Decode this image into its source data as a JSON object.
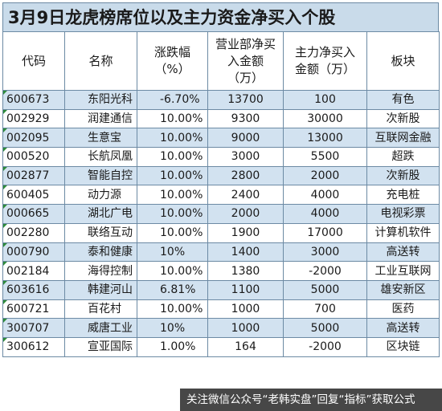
{
  "title": "3月9日龙虎榜席位以及主力资金净买入个股",
  "headers": [
    "代码",
    "名称",
    "涨跌幅（%）",
    "营业部净买入金额（万）",
    "主力净买入金额（万）",
    "板块"
  ],
  "rows": [
    [
      "600673",
      "东阳光科",
      "-6.70%",
      "13700",
      "100",
      "有色"
    ],
    [
      "002929",
      "润建通信",
      "10.00%",
      "9300",
      "30000",
      "次新股"
    ],
    [
      "002095",
      "生意宝",
      "10.00%",
      "9000",
      "13000",
      "互联网金融"
    ],
    [
      "000520",
      "长航凤凰",
      "10.00%",
      "3000",
      "5500",
      "超跌"
    ],
    [
      "002877",
      "智能自控",
      "10.00%",
      "2800",
      "2000",
      "次新股"
    ],
    [
      "600405",
      "动力源",
      "10.00%",
      "2400",
      "4000",
      "充电桩"
    ],
    [
      "000665",
      "湖北广电",
      "10.00%",
      "2000",
      "4000",
      "电视彩票"
    ],
    [
      "002280",
      "联络互动",
      "10.00%",
      "1900",
      "17000",
      "计算机软件"
    ],
    [
      "000790",
      "泰和健康",
      "10%",
      "1400",
      "3000",
      "高送转"
    ],
    [
      "002184",
      "海得控制",
      "10.00%",
      "1380",
      "-2000",
      "工业互联网"
    ],
    [
      "603616",
      "韩建河山",
      "6.81%",
      "1100",
      "5000",
      "雄安新区"
    ],
    [
      "600721",
      "百花村",
      "10.00%",
      "1000",
      "700",
      "医药"
    ],
    [
      "300707",
      "威唐工业",
      "10%",
      "1000",
      "5000",
      "高送转"
    ],
    [
      "300612",
      "宣亚国际",
      "1.00%",
      "164",
      "-2000",
      "区块链"
    ]
  ],
  "footer": "关注微信公众号“老韩实盘”回复“指标”获取公式"
}
